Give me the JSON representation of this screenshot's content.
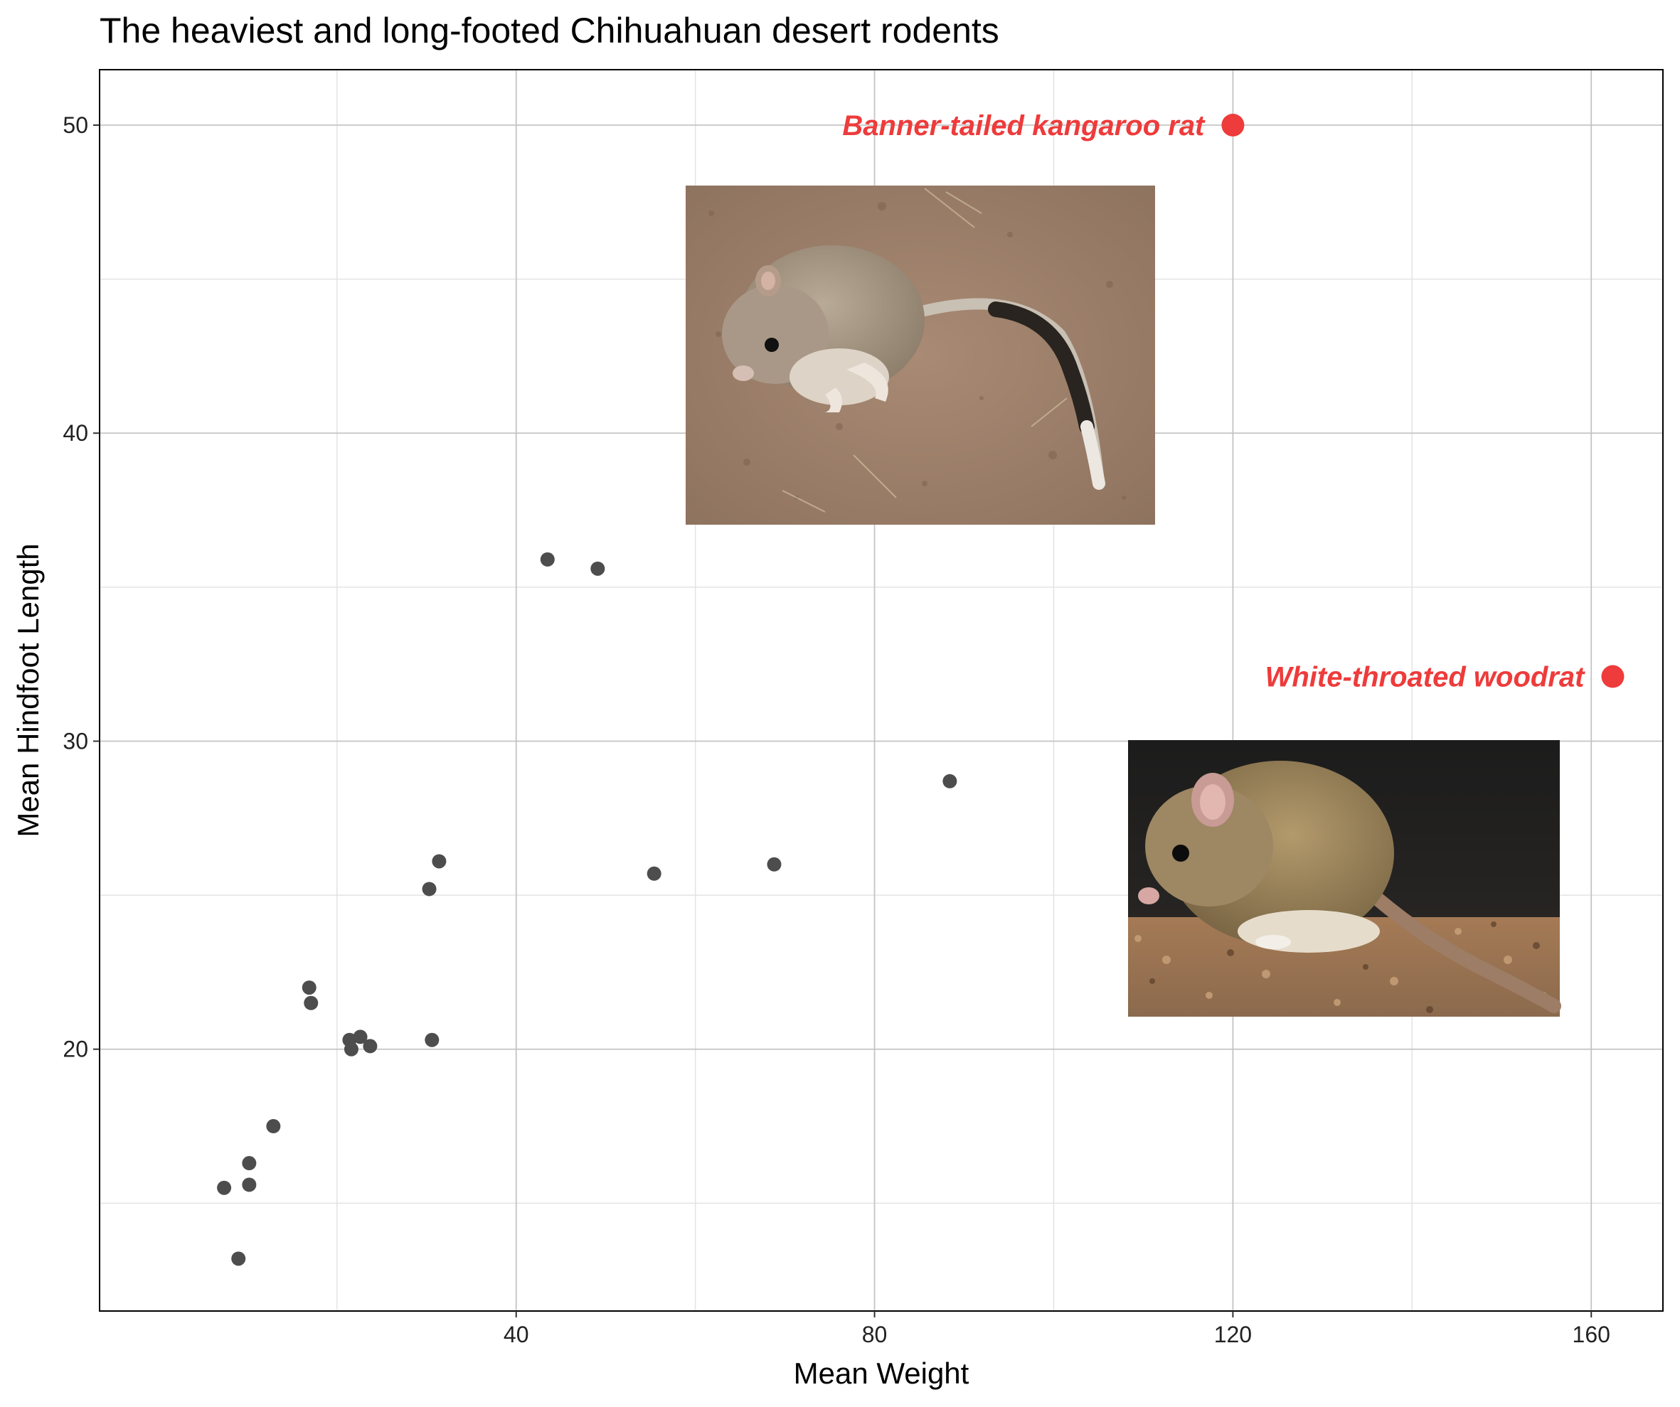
{
  "chart_data": {
    "type": "scatter",
    "title": "The heaviest and long-footed Chihuahuan desert rodents",
    "xlabel": "Mean Weight",
    "ylabel": "Mean Hindfoot Length",
    "xlim": [
      -6.5,
      168
    ],
    "ylim": [
      11.5,
      51.8
    ],
    "x_ticks": [
      40,
      80,
      120,
      160
    ],
    "x_tick_labels": [
      "40",
      "80",
      "120",
      "160"
    ],
    "y_ticks": [
      20,
      30,
      40,
      50
    ],
    "y_tick_labels": [
      "20",
      "30",
      "40",
      "50"
    ],
    "x_minor_ticks": [
      20,
      60,
      100,
      140
    ],
    "y_minor_ticks": [
      15,
      25,
      35,
      45
    ],
    "grid": true,
    "point_color": "#4d4d4d",
    "highlight_color": "#ee3b3b",
    "points": [
      {
        "x": 7.4,
        "y": 15.5
      },
      {
        "x": 9.0,
        "y": 13.2
      },
      {
        "x": 10.2,
        "y": 15.6
      },
      {
        "x": 10.2,
        "y": 16.3
      },
      {
        "x": 12.9,
        "y": 17.5
      },
      {
        "x": 16.9,
        "y": 22.0
      },
      {
        "x": 17.1,
        "y": 21.5
      },
      {
        "x": 21.4,
        "y": 20.3
      },
      {
        "x": 21.6,
        "y": 20.0
      },
      {
        "x": 22.6,
        "y": 20.4
      },
      {
        "x": 23.7,
        "y": 20.1
      },
      {
        "x": 30.3,
        "y": 25.2
      },
      {
        "x": 30.6,
        "y": 20.3
      },
      {
        "x": 31.4,
        "y": 26.1
      },
      {
        "x": 43.5,
        "y": 35.9
      },
      {
        "x": 49.1,
        "y": 35.6
      },
      {
        "x": 55.4,
        "y": 25.7
      },
      {
        "x": 68.8,
        "y": 26.0
      },
      {
        "x": 88.4,
        "y": 28.7
      }
    ],
    "highlights": [
      {
        "x": 120.0,
        "y": 50.0,
        "label": "Banner-tailed kangaroo rat"
      },
      {
        "x": 162.4,
        "y": 32.1,
        "label": "White-throated woodrat"
      }
    ]
  },
  "images": {
    "kangaroo_rat": {
      "name": "kangaroo-rat-photo",
      "description_icon": "rodent-photo"
    },
    "woodrat": {
      "name": "woodrat-photo",
      "description_icon": "rodent-photo"
    }
  }
}
